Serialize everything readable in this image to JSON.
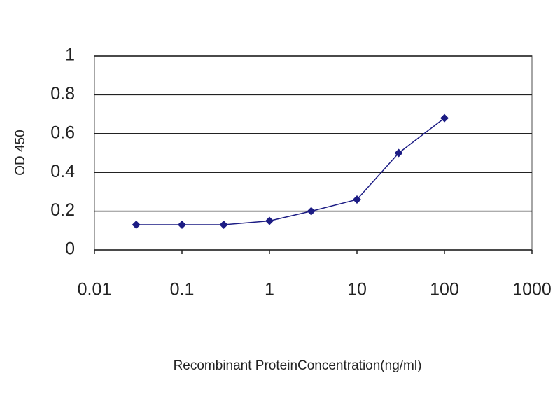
{
  "chart_data": {
    "type": "line",
    "x_label": "Recombinant ProteinConcentration(ng/ml)",
    "y_label": "OD 450",
    "x": [
      0.03,
      0.1,
      0.3,
      1,
      3,
      10,
      30,
      100
    ],
    "values": [
      0.13,
      0.13,
      0.13,
      0.15,
      0.2,
      0.26,
      0.5,
      0.68
    ],
    "color": "#1c1c84",
    "xscale": "log",
    "xlim": [
      0.01,
      1000
    ],
    "xticks": [
      0.01,
      0.1,
      1,
      10,
      100,
      1000
    ],
    "ylim": [
      0,
      1
    ],
    "yticks": [
      0,
      0.2,
      0.4,
      0.6,
      0.8,
      1
    ],
    "grid": true
  }
}
